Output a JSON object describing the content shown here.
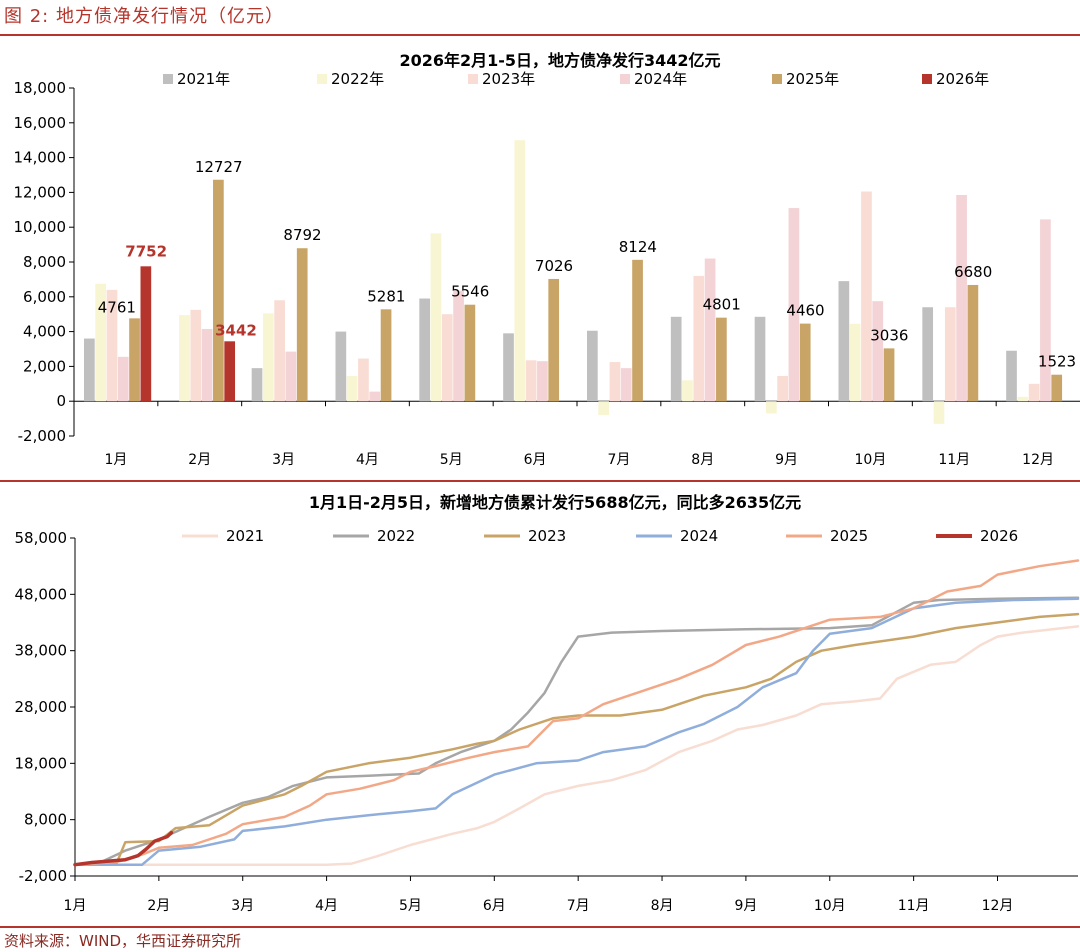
{
  "figure_title": "图 2:  地方债净发行情况（亿元）",
  "source": "资料来源：WIND，华西证券研究所",
  "chart_data": [
    {
      "type": "bar",
      "title": "2026年2月1-5日，地方债净发行3442亿元",
      "categories": [
        "1月",
        "2月",
        "3月",
        "4月",
        "5月",
        "6月",
        "7月",
        "8月",
        "9月",
        "10月",
        "11月",
        "12月"
      ],
      "ylim": [
        -2000,
        18000
      ],
      "yticks": [
        -2000,
        0,
        2000,
        4000,
        6000,
        8000,
        10000,
        12000,
        14000,
        16000,
        18000
      ],
      "ytick_labels": [
        "-2,000",
        "0",
        "2,000",
        "4,000",
        "6,000",
        "8,000",
        "10,000",
        "12,000",
        "14,000",
        "16,000",
        "18,000"
      ],
      "grid": false,
      "legend_position": "top",
      "series": [
        {
          "name": "2021年",
          "color": "#bfbfbf",
          "values": [
            3600,
            null,
            1900,
            4000,
            5900,
            3900,
            4050,
            4850,
            4850,
            6900,
            5400,
            2900
          ]
        },
        {
          "name": "2022年",
          "color": "#f8f5d2",
          "values": [
            6750,
            4950,
            5050,
            1450,
            9650,
            15000,
            -800,
            1200,
            -700,
            4450,
            -1300,
            250
          ]
        },
        {
          "name": "2023年",
          "color": "#f9dcd3",
          "values": [
            6400,
            5250,
            5800,
            2450,
            5000,
            2350,
            2250,
            7200,
            1450,
            12050,
            5400,
            1000
          ]
        },
        {
          "name": "2024年",
          "color": "#f4d3d6",
          "values": [
            2550,
            4150,
            2850,
            550,
            6350,
            2300,
            1900,
            8200,
            11100,
            5750,
            11850,
            10450
          ]
        },
        {
          "name": "2025年",
          "color": "#c9a467",
          "values": [
            4761,
            12727,
            8792,
            5281,
            5546,
            7026,
            8124,
            4801,
            4460,
            3036,
            6680,
            1523
          ]
        },
        {
          "name": "2026年",
          "color": "#b5342b",
          "values": [
            7752,
            3442,
            null,
            null,
            null,
            null,
            null,
            null,
            null,
            null,
            null,
            null
          ]
        }
      ],
      "data_labels": [
        {
          "text": "4761",
          "category": "1月",
          "series": "2025年",
          "highlight": false
        },
        {
          "text": "7752",
          "category": "1月",
          "series": "2026年",
          "highlight": true
        },
        {
          "text": "12727",
          "category": "2月",
          "series": "2025年",
          "highlight": false
        },
        {
          "text": "3442",
          "category": "2月",
          "series": "2026年",
          "highlight": true
        },
        {
          "text": "8792",
          "category": "3月",
          "series": "2025年",
          "highlight": false
        },
        {
          "text": "5281",
          "category": "4月",
          "series": "2025年",
          "highlight": false
        },
        {
          "text": "5546",
          "category": "5月",
          "series": "2025年",
          "highlight": false
        },
        {
          "text": "7026",
          "category": "6月",
          "series": "2025年",
          "highlight": false
        },
        {
          "text": "8124",
          "category": "7月",
          "series": "2025年",
          "highlight": false
        },
        {
          "text": "4801",
          "category": "8月",
          "series": "2025年",
          "highlight": false
        },
        {
          "text": "4460",
          "category": "9月",
          "series": "2025年",
          "highlight": false
        },
        {
          "text": "3036",
          "category": "10月",
          "series": "2025年",
          "highlight": false
        },
        {
          "text": "6680",
          "category": "11月",
          "series": "2025年",
          "highlight": false
        },
        {
          "text": "1523",
          "category": "12月",
          "series": "2025年",
          "highlight": false
        }
      ]
    },
    {
      "type": "line",
      "title": "1月1日-2月5日，新增地方债累计发行5688亿元，同比多2635亿元",
      "x_unit": "month",
      "xlim": [
        1,
        12.96
      ],
      "xticks": [
        1,
        2,
        3,
        4,
        5,
        6,
        7,
        8,
        9,
        10,
        11,
        12
      ],
      "xtick_labels": [
        "1月",
        "2月",
        "3月",
        "4月",
        "5月",
        "6月",
        "7月",
        "8月",
        "9月",
        "10月",
        "11月",
        "12月"
      ],
      "ylim": [
        -2000,
        58000
      ],
      "yticks": [
        -2000,
        8000,
        18000,
        28000,
        38000,
        48000,
        58000
      ],
      "ytick_labels": [
        "-2,000",
        "8,000",
        "18,000",
        "28,000",
        "38,000",
        "48,000",
        "58,000"
      ],
      "grid": false,
      "legend_position": "top",
      "series": [
        {
          "name": "2021",
          "color": "#f8ddd2",
          "points": [
            [
              1,
              0
            ],
            [
              3,
              0
            ],
            [
              4,
              0
            ],
            [
              4.3,
              200
            ],
            [
              4.6,
              1500
            ],
            [
              5,
              3500
            ],
            [
              5.5,
              5500
            ],
            [
              5.8,
              6500
            ],
            [
              6,
              7600
            ],
            [
              6.3,
              10000
            ],
            [
              6.6,
              12500
            ],
            [
              7,
              14000
            ],
            [
              7.4,
              15000
            ],
            [
              7.8,
              16800
            ],
            [
              8.2,
              20000
            ],
            [
              8.6,
              22000
            ],
            [
              8.9,
              24000
            ],
            [
              9.2,
              24800
            ],
            [
              9.6,
              26500
            ],
            [
              9.9,
              28500
            ],
            [
              10.3,
              29000
            ],
            [
              10.6,
              29500
            ],
            [
              10.8,
              33000
            ],
            [
              11.2,
              35500
            ],
            [
              11.5,
              36000
            ],
            [
              11.8,
              39000
            ],
            [
              12,
              40500
            ],
            [
              12.3,
              41200
            ],
            [
              12.96,
              42300
            ]
          ]
        },
        {
          "name": "2022",
          "color": "#a6a6a6",
          "points": [
            [
              1,
              0
            ],
            [
              1.3,
              400
            ],
            [
              1.6,
              2500
            ],
            [
              2,
              4500
            ],
            [
              2.3,
              6500
            ],
            [
              2.6,
              8500
            ],
            [
              3,
              11000
            ],
            [
              3.3,
              12000
            ],
            [
              3.6,
              14000
            ],
            [
              4,
              15500
            ],
            [
              4.5,
              15800
            ],
            [
              5.1,
              16200
            ],
            [
              5.3,
              18000
            ],
            [
              5.6,
              20000
            ],
            [
              6,
              22000
            ],
            [
              6.2,
              24000
            ],
            [
              6.4,
              27000
            ],
            [
              6.6,
              30500
            ],
            [
              6.8,
              36000
            ],
            [
              7,
              40500
            ],
            [
              7.4,
              41200
            ],
            [
              8,
              41500
            ],
            [
              9,
              41800
            ],
            [
              10,
              42000
            ],
            [
              10.5,
              42500
            ],
            [
              11,
              46500
            ],
            [
              11.3,
              47000
            ],
            [
              12,
              47200
            ],
            [
              12.96,
              47400
            ]
          ]
        },
        {
          "name": "2023",
          "color": "#c9a467",
          "points": [
            [
              1,
              0
            ],
            [
              1.5,
              400
            ],
            [
              1.6,
              4000
            ],
            [
              2,
              4200
            ],
            [
              2.2,
              6500
            ],
            [
              2.6,
              7000
            ],
            [
              3,
              10500
            ],
            [
              3.5,
              12500
            ],
            [
              3.7,
              14000
            ],
            [
              4,
              16500
            ],
            [
              4.5,
              18000
            ],
            [
              5,
              19000
            ],
            [
              5.5,
              20500
            ],
            [
              5.8,
              21500
            ],
            [
              6,
              22000
            ],
            [
              6.3,
              24000
            ],
            [
              6.7,
              26000
            ],
            [
              7,
              26500
            ],
            [
              7.5,
              26500
            ],
            [
              8,
              27500
            ],
            [
              8.5,
              30000
            ],
            [
              9,
              31500
            ],
            [
              9.3,
              33000
            ],
            [
              9.6,
              36000
            ],
            [
              9.9,
              38000
            ],
            [
              10.3,
              39000
            ],
            [
              11,
              40500
            ],
            [
              11.5,
              42000
            ],
            [
              12,
              43000
            ],
            [
              12.5,
              44000
            ],
            [
              12.96,
              44500
            ]
          ]
        },
        {
          "name": "2024",
          "color": "#8faedb",
          "points": [
            [
              1,
              0
            ],
            [
              1.8,
              0
            ],
            [
              2,
              2500
            ],
            [
              2.5,
              3200
            ],
            [
              2.9,
              4500
            ],
            [
              3,
              6000
            ],
            [
              3.5,
              6800
            ],
            [
              4,
              8000
            ],
            [
              4.5,
              8800
            ],
            [
              5,
              9500
            ],
            [
              5.3,
              10000
            ],
            [
              5.5,
              12500
            ],
            [
              6,
              16000
            ],
            [
              6.5,
              18000
            ],
            [
              7,
              18500
            ],
            [
              7.3,
              20000
            ],
            [
              7.8,
              21000
            ],
            [
              8.2,
              23500
            ],
            [
              8.5,
              25000
            ],
            [
              8.9,
              28000
            ],
            [
              9.2,
              31500
            ],
            [
              9.6,
              34000
            ],
            [
              9.8,
              38000
            ],
            [
              10,
              41000
            ],
            [
              10.5,
              42000
            ],
            [
              11,
              45500
            ],
            [
              11.5,
              46500
            ],
            [
              12.2,
              47000
            ],
            [
              12.96,
              47200
            ]
          ]
        },
        {
          "name": "2025",
          "color": "#f2a887",
          "points": [
            [
              1,
              0
            ],
            [
              1.5,
              500
            ],
            [
              1.8,
              1800
            ],
            [
              2,
              3000
            ],
            [
              2.4,
              3500
            ],
            [
              2.8,
              5500
            ],
            [
              3,
              7200
            ],
            [
              3.5,
              8500
            ],
            [
              3.8,
              10500
            ],
            [
              4,
              12500
            ],
            [
              4.4,
              13500
            ],
            [
              4.8,
              15000
            ],
            [
              5,
              16500
            ],
            [
              5.3,
              17500
            ],
            [
              5.7,
              19000
            ],
            [
              6,
              20000
            ],
            [
              6.4,
              21000
            ],
            [
              6.7,
              25500
            ],
            [
              7,
              26000
            ],
            [
              7.3,
              28500
            ],
            [
              7.8,
              31000
            ],
            [
              8.2,
              33000
            ],
            [
              8.6,
              35500
            ],
            [
              9,
              39000
            ],
            [
              9.4,
              40500
            ],
            [
              10,
              43500
            ],
            [
              10.6,
              44000
            ],
            [
              11,
              45500
            ],
            [
              11.4,
              48500
            ],
            [
              11.8,
              49500
            ],
            [
              12,
              51500
            ],
            [
              12.5,
              53000
            ],
            [
              12.96,
              54000
            ]
          ]
        },
        {
          "name": "2026",
          "color": "#b5342b",
          "points": [
            [
              1,
              0
            ],
            [
              1.2,
              400
            ],
            [
              1.6,
              900
            ],
            [
              1.75,
              1600
            ],
            [
              1.85,
              2800
            ],
            [
              1.95,
              4200
            ],
            [
              2.1,
              5000
            ],
            [
              2.15,
              5688
            ]
          ]
        }
      ]
    }
  ]
}
